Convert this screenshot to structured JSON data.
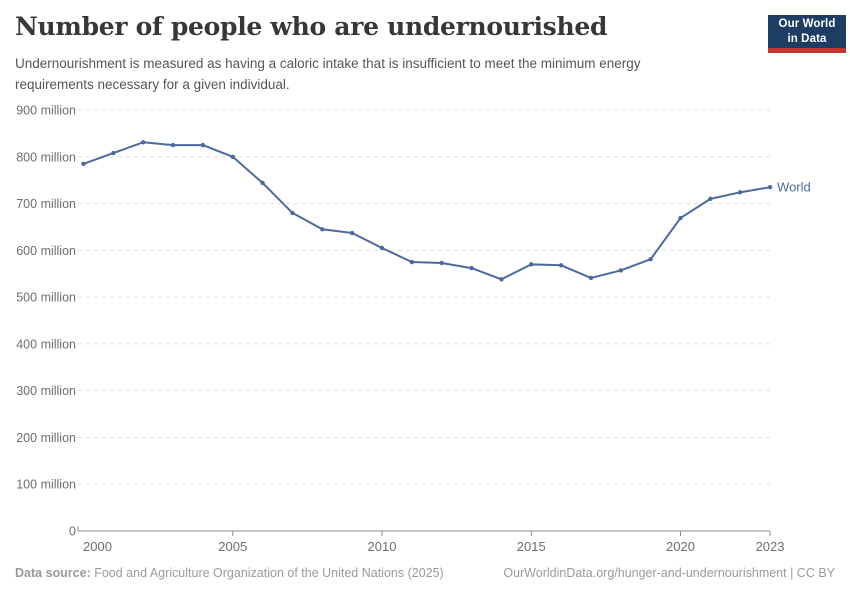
{
  "header": {
    "title": "Number of people who are undernourished",
    "subtitle": "Undernourishment is measured as having a caloric intake that is insufficient to meet the minimum energy requirements necessary for a given individual.",
    "logo": {
      "line1": "Our World",
      "line2": "in Data"
    }
  },
  "chart_data": {
    "type": "line",
    "title": "Number of people who are undernourished",
    "xlabel": "",
    "ylabel": "",
    "unit": "million",
    "xlim": [
      2000,
      2023
    ],
    "ylim": [
      0,
      900
    ],
    "grid": "horizontal-dashed",
    "legend": "inline-end-label",
    "x": [
      2000,
      2001,
      2002,
      2003,
      2004,
      2005,
      2006,
      2007,
      2008,
      2009,
      2010,
      2011,
      2012,
      2013,
      2014,
      2015,
      2016,
      2017,
      2018,
      2019,
      2020,
      2021,
      2022,
      2023
    ],
    "series": [
      {
        "name": "World",
        "color": "#4c6a9e",
        "values": [
          785,
          808,
          831,
          825,
          825,
          800,
          744,
          680,
          645,
          637,
          605,
          575,
          573,
          562,
          538,
          570,
          568,
          541,
          557,
          581,
          669,
          710,
          724,
          735
        ]
      }
    ],
    "x_ticks": [
      2000,
      2005,
      2010,
      2015,
      2020,
      2023
    ],
    "x_tick_labels": [
      "2000",
      "2005",
      "2010",
      "2015",
      "2020",
      "2023"
    ],
    "y_ticks": [
      0,
      100,
      200,
      300,
      400,
      500,
      600,
      700,
      800,
      900
    ],
    "y_tick_labels": [
      "0",
      "100 million",
      "200 million",
      "300 million",
      "400 million",
      "500 million",
      "600 million",
      "700 million",
      "800 million",
      "900 million"
    ]
  },
  "footer": {
    "source_label": "Data source:",
    "source_text": " Food and Agriculture Organization of the United Nations (2025)",
    "link_text": "OurWorldinData.org/hunger-and-undernourishment | CC BY"
  },
  "colors": {
    "line": "#4c6a9e",
    "grid": "#e0e0e0",
    "axis": "#8f8f8f",
    "tick_text": "#6e6e6e",
    "logo_navy": "#1d3d63",
    "logo_red": "#c5372e"
  }
}
